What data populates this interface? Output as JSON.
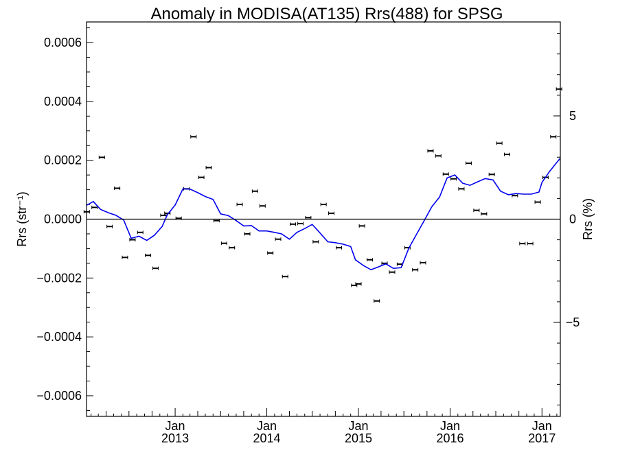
{
  "chart_data": {
    "type": "scatter",
    "title": "Anomaly in MODISA(AT135) Rrs(488) for SPSG",
    "ylabel_left": "Rrs (str⁻¹)",
    "ylabel_right": "Rrs (%)",
    "ylim": [
      -0.00067,
      0.00067
    ],
    "ylim_right": [
      -9.55,
      9.55
    ],
    "xlim": [
      "2012-01-14",
      "2017-03-15"
    ],
    "left_ticks": [
      {
        "v": 0.0006,
        "label": "0.0006"
      },
      {
        "v": 0.0004,
        "label": "0.0004"
      },
      {
        "v": 0.0002,
        "label": "0.0002"
      },
      {
        "v": 0,
        "label": "0.0000"
      },
      {
        "v": -0.0002,
        "label": "−0.0002"
      },
      {
        "v": -0.0004,
        "label": "−0.0004"
      },
      {
        "v": -0.0006,
        "label": "−0.0006"
      }
    ],
    "right_ticks": [
      {
        "v": 5,
        "label": "5"
      },
      {
        "v": 0,
        "label": "0"
      },
      {
        "v": -5,
        "label": "−5"
      }
    ],
    "x_ticks": [
      {
        "date": "2013-01-01",
        "month": "Jan",
        "year": "2013"
      },
      {
        "date": "2014-01-01",
        "month": "Jan",
        "year": "2014"
      },
      {
        "date": "2015-01-01",
        "month": "Jan",
        "year": "2015"
      },
      {
        "date": "2016-01-01",
        "month": "Jan",
        "year": "2016"
      },
      {
        "date": "2017-01-01",
        "month": "Jan",
        "year": "2017"
      }
    ],
    "points": [
      {
        "x": "2012-01-15",
        "y": 2.5e-05
      },
      {
        "x": "2012-02-15",
        "y": 4e-05
      },
      {
        "x": "2012-03-15",
        "y": 0.00021
      },
      {
        "x": "2012-04-15",
        "y": -2.5e-05
      },
      {
        "x": "2012-05-15",
        "y": 0.000105
      },
      {
        "x": "2012-06-15",
        "y": -0.00013
      },
      {
        "x": "2012-07-15",
        "y": -7e-05
      },
      {
        "x": "2012-08-15",
        "y": -4.5e-05
      },
      {
        "x": "2012-09-15",
        "y": -0.000123
      },
      {
        "x": "2012-10-15",
        "y": -0.000167
      },
      {
        "x": "2012-11-15",
        "y": 1.3e-05
      },
      {
        "x": "2012-12-01",
        "y": 2e-05
      },
      {
        "x": "2013-01-15",
        "y": 3e-06
      },
      {
        "x": "2013-02-15",
        "y": 0.000103
      },
      {
        "x": "2013-03-15",
        "y": 0.00028
      },
      {
        "x": "2013-04-15",
        "y": 0.000142
      },
      {
        "x": "2013-05-15",
        "y": 0.000175
      },
      {
        "x": "2013-06-15",
        "y": -5e-06
      },
      {
        "x": "2013-07-15",
        "y": -8.2e-05
      },
      {
        "x": "2013-08-15",
        "y": -9.7e-05
      },
      {
        "x": "2013-09-15",
        "y": 5e-05
      },
      {
        "x": "2013-10-15",
        "y": -5e-05
      },
      {
        "x": "2013-11-15",
        "y": 9.5e-05
      },
      {
        "x": "2013-12-15",
        "y": 4.5e-05
      },
      {
        "x": "2014-01-15",
        "y": -0.000115
      },
      {
        "x": "2014-02-15",
        "y": -6.8e-05
      },
      {
        "x": "2014-03-15",
        "y": -0.000195
      },
      {
        "x": "2014-04-15",
        "y": -1.7e-05
      },
      {
        "x": "2014-05-15",
        "y": -1.5e-05
      },
      {
        "x": "2014-06-15",
        "y": 5e-06
      },
      {
        "x": "2014-07-15",
        "y": -7.7e-05
      },
      {
        "x": "2014-08-15",
        "y": 5e-05
      },
      {
        "x": "2014-09-15",
        "y": 2e-05
      },
      {
        "x": "2014-10-15",
        "y": -9.7e-05
      },
      {
        "x": "2014-12-15",
        "y": -0.000225
      },
      {
        "x": "2015-01-01",
        "y": -0.00022
      },
      {
        "x": "2015-01-15",
        "y": -2.3e-05
      },
      {
        "x": "2015-02-15",
        "y": -0.000138
      },
      {
        "x": "2015-03-15",
        "y": -0.000278
      },
      {
        "x": "2015-04-15",
        "y": -0.00015
      },
      {
        "x": "2015-05-15",
        "y": -0.00018
      },
      {
        "x": "2015-06-15",
        "y": -0.000153
      },
      {
        "x": "2015-07-15",
        "y": -9.7e-05
      },
      {
        "x": "2015-08-15",
        "y": -0.000172
      },
      {
        "x": "2015-09-15",
        "y": -0.000148
      },
      {
        "x": "2015-10-15",
        "y": 0.000232
      },
      {
        "x": "2015-11-15",
        "y": 0.000215
      },
      {
        "x": "2015-12-15",
        "y": 0.000153
      },
      {
        "x": "2016-01-15",
        "y": 0.000137
      },
      {
        "x": "2016-02-15",
        "y": 0.000103
      },
      {
        "x": "2016-03-15",
        "y": 0.00019
      },
      {
        "x": "2016-04-15",
        "y": 3e-05
      },
      {
        "x": "2016-05-15",
        "y": 1.8e-05
      },
      {
        "x": "2016-06-15",
        "y": 0.000152
      },
      {
        "x": "2016-07-15",
        "y": 0.000258
      },
      {
        "x": "2016-08-15",
        "y": 0.00022
      },
      {
        "x": "2016-09-15",
        "y": 8e-05
      },
      {
        "x": "2016-10-15",
        "y": -8.3e-05
      },
      {
        "x": "2016-11-15",
        "y": -8.3e-05
      },
      {
        "x": "2016-12-15",
        "y": 5.8e-05
      },
      {
        "x": "2017-01-15",
        "y": 0.000142
      },
      {
        "x": "2017-02-15",
        "y": 0.00028
      },
      {
        "x": "2017-03-10",
        "y": 0.000442
      }
    ],
    "line": [
      {
        "x": "2012-01-14",
        "y": 4.7e-05
      },
      {
        "x": "2012-02-10",
        "y": 6e-05
      },
      {
        "x": "2012-03-10",
        "y": 3.3e-05
      },
      {
        "x": "2012-04-10",
        "y": 2.2e-05
      },
      {
        "x": "2012-05-10",
        "y": 1.3e-05
      },
      {
        "x": "2012-06-10",
        "y": -3e-06
      },
      {
        "x": "2012-07-10",
        "y": -6.5e-05
      },
      {
        "x": "2012-08-10",
        "y": -5.8e-05
      },
      {
        "x": "2012-09-10",
        "y": -7.2e-05
      },
      {
        "x": "2012-10-10",
        "y": -5.5e-05
      },
      {
        "x": "2012-11-10",
        "y": -2.5e-05
      },
      {
        "x": "2012-12-01",
        "y": 1.5e-05
      },
      {
        "x": "2013-01-01",
        "y": 4.8e-05
      },
      {
        "x": "2013-02-01",
        "y": 0.000103
      },
      {
        "x": "2013-03-01",
        "y": 0.000102
      },
      {
        "x": "2013-04-01",
        "y": 9e-05
      },
      {
        "x": "2013-05-01",
        "y": 7.7e-05
      },
      {
        "x": "2013-06-01",
        "y": 6.7e-05
      },
      {
        "x": "2013-07-01",
        "y": 1.8e-05
      },
      {
        "x": "2013-08-01",
        "y": 1.2e-05
      },
      {
        "x": "2013-09-01",
        "y": -5e-06
      },
      {
        "x": "2013-10-01",
        "y": -2.3e-05
      },
      {
        "x": "2013-11-01",
        "y": -2.2e-05
      },
      {
        "x": "2013-12-01",
        "y": -4e-05
      },
      {
        "x": "2014-01-01",
        "y": -4e-05
      },
      {
        "x": "2014-02-01",
        "y": -4.5e-05
      },
      {
        "x": "2014-03-01",
        "y": -5e-05
      },
      {
        "x": "2014-04-01",
        "y": -6.8e-05
      },
      {
        "x": "2014-05-01",
        "y": -4.5e-05
      },
      {
        "x": "2014-06-01",
        "y": -3.2e-05
      },
      {
        "x": "2014-07-01",
        "y": -1.8e-05
      },
      {
        "x": "2014-08-01",
        "y": -4.7e-05
      },
      {
        "x": "2014-09-01",
        "y": -7.7e-05
      },
      {
        "x": "2014-10-01",
        "y": -8e-05
      },
      {
        "x": "2014-11-01",
        "y": -8.5e-05
      },
      {
        "x": "2014-12-01",
        "y": -9.3e-05
      },
      {
        "x": "2014-12-20",
        "y": -0.000138
      },
      {
        "x": "2015-01-20",
        "y": -0.000157
      },
      {
        "x": "2015-02-20",
        "y": -0.000172
      },
      {
        "x": "2015-03-20",
        "y": -0.000163
      },
      {
        "x": "2015-04-20",
        "y": -0.000152
      },
      {
        "x": "2015-05-20",
        "y": -0.000167
      },
      {
        "x": "2015-06-20",
        "y": -0.000165
      },
      {
        "x": "2015-07-20",
        "y": -0.0001
      },
      {
        "x": "2015-08-20",
        "y": -5.2e-05
      },
      {
        "x": "2015-09-20",
        "y": -5e-06
      },
      {
        "x": "2015-10-20",
        "y": 4.2e-05
      },
      {
        "x": "2015-11-20",
        "y": 7.5e-05
      },
      {
        "x": "2015-12-20",
        "y": 0.00014
      },
      {
        "x": "2016-01-20",
        "y": 0.00015
      },
      {
        "x": "2016-02-20",
        "y": 0.000122
      },
      {
        "x": "2016-03-20",
        "y": 0.000115
      },
      {
        "x": "2016-04-20",
        "y": 0.000127
      },
      {
        "x": "2016-05-20",
        "y": 0.000138
      },
      {
        "x": "2016-06-20",
        "y": 0.000133
      },
      {
        "x": "2016-07-20",
        "y": 9.5e-05
      },
      {
        "x": "2016-08-20",
        "y": 8.3e-05
      },
      {
        "x": "2016-09-20",
        "y": 8.7e-05
      },
      {
        "x": "2016-10-20",
        "y": 8.5e-05
      },
      {
        "x": "2016-11-20",
        "y": 8.5e-05
      },
      {
        "x": "2016-12-20",
        "y": 9.2e-05
      },
      {
        "x": "2017-01-01",
        "y": 0.000125
      },
      {
        "x": "2017-02-01",
        "y": 0.000163
      },
      {
        "x": "2017-03-01",
        "y": 0.000193
      },
      {
        "x": "2017-03-15",
        "y": 0.000207
      }
    ],
    "colors": {
      "line": "#0000ee",
      "points": "#000000",
      "zero_line": "#000000"
    }
  }
}
